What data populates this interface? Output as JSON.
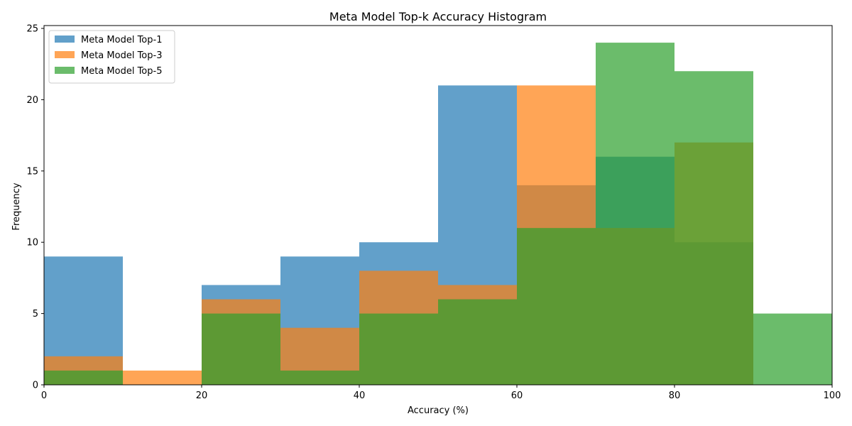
{
  "chart_data": {
    "type": "bar",
    "title": "Meta Model Top-k Accuracy Histogram",
    "xlabel": "Accuracy (%)",
    "ylabel": "Frequency",
    "xlim": [
      0,
      100
    ],
    "ylim": [
      0,
      25.2
    ],
    "x_ticks": [
      0,
      20,
      40,
      60,
      80,
      100
    ],
    "y_ticks": [
      0,
      5,
      10,
      15,
      20,
      25
    ],
    "bin_edges": [
      0,
      10,
      20,
      30,
      40,
      50,
      60,
      70,
      80,
      90,
      100
    ],
    "legend_position": "top-left",
    "grid": false,
    "series": [
      {
        "name": "Meta Model Top-1",
        "color": "#1f77b4",
        "values": [
          9,
          0,
          7,
          9,
          10,
          21,
          14,
          16,
          10,
          0
        ]
      },
      {
        "name": "Meta Model Top-3",
        "color": "#ff7f0e",
        "values": [
          2,
          1,
          6,
          4,
          8,
          7,
          21,
          11,
          17,
          0
        ]
      },
      {
        "name": "Meta Model Top-5",
        "color": "#2ca02c",
        "values": [
          1,
          0,
          5,
          1,
          5,
          6,
          11,
          24,
          22,
          5
        ]
      }
    ]
  }
}
